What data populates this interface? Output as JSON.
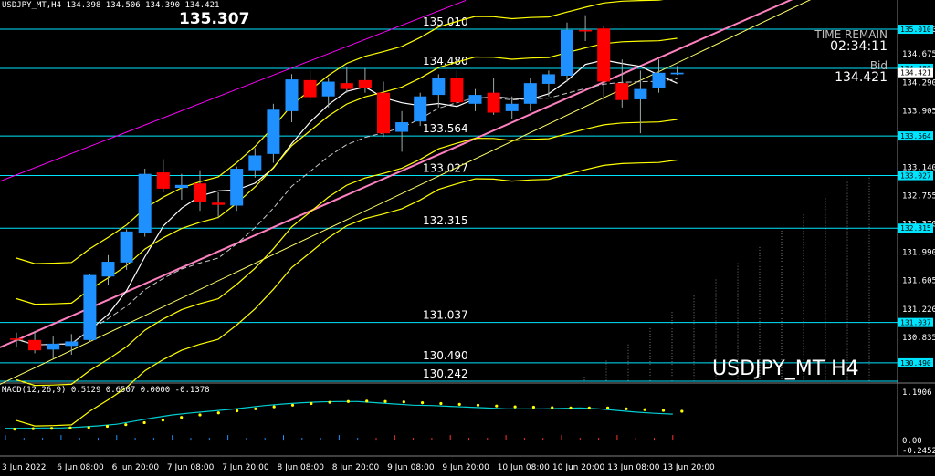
{
  "header": {
    "text": "USDJPY_MT,H4  134.398 134.506 134.390 134.421"
  },
  "big_price": "135.307",
  "time_remain": {
    "label": "TIME REMAIN",
    "value": "02:34:11"
  },
  "bid": {
    "label": "Bid",
    "value": "134.421"
  },
  "symbol_title": "USDJPY_MT H4",
  "macd_label": "MACD(12,26,9) 0.5129 0.6507 0.0000 -0.1378",
  "colors": {
    "bull": "#1e90ff",
    "bear": "#ff0000",
    "level": "#00e5ff",
    "band": "#ffff00",
    "channel": "#ff00ff",
    "trend": "#ff80c0",
    "ma": "#ffffff",
    "macd_line": "#00ced1",
    "macd_signal": "#ffff00",
    "price_tag_bg": "#00e5ff"
  },
  "chart_data": {
    "type": "candlestick",
    "symbol": "USDJPY_MT",
    "timeframe": "H4",
    "ylim": [
      130.242,
      135.307
    ],
    "y_ticks": [
      "135.010",
      "134.675",
      "134.290",
      "133.905",
      "133.140",
      "132.755",
      "132.370",
      "131.990",
      "131.605",
      "131.220",
      "130.835"
    ],
    "x_ticks": [
      "3 Jun 2022",
      "6 Jun 08:00",
      "6 Jun 20:00",
      "7 Jun 08:00",
      "7 Jun 20:00",
      "8 Jun 08:00",
      "8 Jun 20:00",
      "9 Jun 08:00",
      "9 Jun 20:00",
      "10 Jun 08:00",
      "10 Jun 20:00",
      "13 Jun 08:00",
      "13 Jun 20:00"
    ],
    "price_levels": [
      {
        "value": 135.01,
        "label": "135.010"
      },
      {
        "value": 134.48,
        "label": "134.480"
      },
      {
        "value": 133.564,
        "label": "133.564"
      },
      {
        "value": 133.027,
        "label": "133.027"
      },
      {
        "value": 132.315,
        "label": "132.315"
      },
      {
        "value": 131.037,
        "label": "131.037"
      },
      {
        "value": 130.49,
        "label": "130.490"
      },
      {
        "value": 130.242,
        "label": "130.242"
      }
    ],
    "axis_price_tags": [
      "135.010",
      "134.480",
      "134.421",
      "133.564",
      "133.027",
      "132.315",
      "131.037",
      "130.490"
    ],
    "candles": [
      {
        "o": 130.82,
        "h": 130.9,
        "l": 130.7,
        "c": 130.81
      },
      {
        "o": 130.8,
        "h": 130.92,
        "l": 130.62,
        "c": 130.66
      },
      {
        "o": 130.67,
        "h": 130.85,
        "l": 130.55,
        "c": 130.75
      },
      {
        "o": 130.72,
        "h": 130.88,
        "l": 130.6,
        "c": 130.78
      },
      {
        "o": 130.8,
        "h": 131.7,
        "l": 130.78,
        "c": 131.68
      },
      {
        "o": 131.66,
        "h": 131.95,
        "l": 131.55,
        "c": 131.86
      },
      {
        "o": 131.85,
        "h": 132.3,
        "l": 131.75,
        "c": 132.27
      },
      {
        "o": 132.25,
        "h": 133.12,
        "l": 132.2,
        "c": 133.05
      },
      {
        "o": 133.07,
        "h": 133.25,
        "l": 132.8,
        "c": 132.85
      },
      {
        "o": 132.86,
        "h": 133.05,
        "l": 132.7,
        "c": 132.9
      },
      {
        "o": 132.92,
        "h": 133.1,
        "l": 132.55,
        "c": 132.67
      },
      {
        "o": 132.66,
        "h": 132.8,
        "l": 132.45,
        "c": 132.63
      },
      {
        "o": 132.62,
        "h": 133.15,
        "l": 132.55,
        "c": 133.12
      },
      {
        "o": 133.1,
        "h": 133.4,
        "l": 133.0,
        "c": 133.3
      },
      {
        "o": 133.32,
        "h": 134.0,
        "l": 133.2,
        "c": 133.92
      },
      {
        "o": 133.9,
        "h": 134.4,
        "l": 133.75,
        "c": 134.33
      },
      {
        "o": 134.32,
        "h": 134.45,
        "l": 134.05,
        "c": 134.09
      },
      {
        "o": 134.1,
        "h": 134.35,
        "l": 133.95,
        "c": 134.3
      },
      {
        "o": 134.28,
        "h": 134.5,
        "l": 134.15,
        "c": 134.2
      },
      {
        "o": 134.32,
        "h": 134.48,
        "l": 134.15,
        "c": 134.22
      },
      {
        "o": 134.15,
        "h": 134.3,
        "l": 133.55,
        "c": 133.6
      },
      {
        "o": 133.62,
        "h": 133.9,
        "l": 133.35,
        "c": 133.75
      },
      {
        "o": 133.76,
        "h": 134.15,
        "l": 133.7,
        "c": 134.1
      },
      {
        "o": 134.12,
        "h": 134.4,
        "l": 133.95,
        "c": 134.35
      },
      {
        "o": 134.35,
        "h": 134.45,
        "l": 133.95,
        "c": 134.02
      },
      {
        "o": 134.0,
        "h": 134.2,
        "l": 133.9,
        "c": 134.12
      },
      {
        "o": 134.15,
        "h": 134.35,
        "l": 133.85,
        "c": 133.88
      },
      {
        "o": 133.9,
        "h": 134.1,
        "l": 133.8,
        "c": 134.0
      },
      {
        "o": 134.0,
        "h": 134.35,
        "l": 133.9,
        "c": 134.28
      },
      {
        "o": 134.27,
        "h": 134.45,
        "l": 134.1,
        "c": 134.4
      },
      {
        "o": 134.38,
        "h": 135.1,
        "l": 134.3,
        "c": 135.0
      },
      {
        "o": 135.0,
        "h": 135.2,
        "l": 134.85,
        "c": 134.98
      },
      {
        "o": 135.02,
        "h": 135.05,
        "l": 134.05,
        "c": 134.3
      },
      {
        "o": 134.28,
        "h": 134.6,
        "l": 133.95,
        "c": 134.05
      },
      {
        "o": 134.06,
        "h": 134.45,
        "l": 133.6,
        "c": 134.2
      },
      {
        "o": 134.22,
        "h": 134.6,
        "l": 134.15,
        "c": 134.42
      },
      {
        "o": 134.4,
        "h": 134.51,
        "l": 134.39,
        "c": 134.421
      }
    ],
    "macd": {
      "ylim": [
        -0.2452,
        1.1906
      ],
      "y_ticks": [
        "1.1906",
        "0.00",
        "-0.2452"
      ],
      "main": [
        0.3,
        0.3,
        0.31,
        0.31,
        0.33,
        0.36,
        0.4,
        0.48,
        0.56,
        0.63,
        0.68,
        0.72,
        0.76,
        0.81,
        0.86,
        0.9,
        0.93,
        0.95,
        0.96,
        0.96,
        0.93,
        0.9,
        0.87,
        0.86,
        0.84,
        0.82,
        0.8,
        0.78,
        0.78,
        0.78,
        0.79,
        0.8,
        0.78,
        0.74,
        0.7,
        0.67,
        0.65
      ],
      "signal": [
        0.28,
        0.29,
        0.3,
        0.31,
        0.32,
        0.35,
        0.39,
        0.44,
        0.5,
        0.57,
        0.63,
        0.68,
        0.73,
        0.78,
        0.83,
        0.87,
        0.91,
        0.94,
        0.96,
        0.97,
        0.96,
        0.95,
        0.93,
        0.91,
        0.89,
        0.87,
        0.85,
        0.83,
        0.82,
        0.81,
        0.8,
        0.8,
        0.8,
        0.78,
        0.76,
        0.74,
        0.72
      ]
    }
  }
}
